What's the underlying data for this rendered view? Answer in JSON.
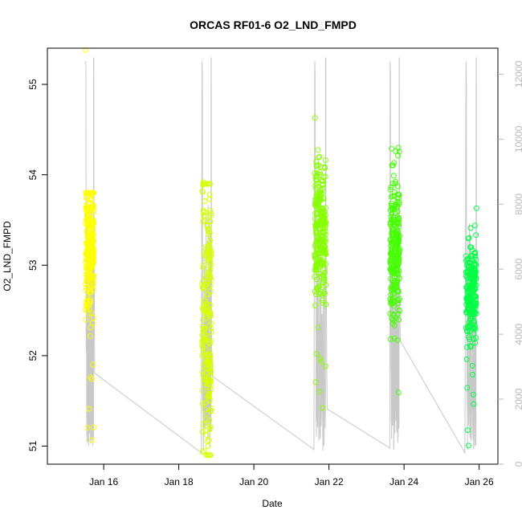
{
  "chart_data": {
    "type": "scatter",
    "title": "ORCAS RF01-6 O2_LND_FMPD",
    "xlabel": "Date",
    "ylabel": "O2_LND_FMPD",
    "x_ticks": [
      "Jan 16",
      "Jan 18",
      "Jan 20",
      "Jan 22",
      "Jan 24",
      "Jan 26"
    ],
    "x_tick_days": [
      16,
      18,
      20,
      22,
      24,
      26
    ],
    "xlim_days": [
      14.5,
      26.5
    ],
    "ylim": [
      50.8,
      55.4
    ],
    "y_ticks": [
      51,
      52,
      53,
      54,
      55
    ],
    "y2_label": "",
    "y2lim": [
      0,
      12800
    ],
    "y2_ticks": [
      0,
      2000,
      4000,
      6000,
      8000,
      10000,
      12000
    ],
    "grid": false,
    "colors": {
      "altitude_line": "#c8c8c8",
      "right_axis": "#b8b8b8",
      "flight_1": "#ffff00",
      "flight_2": "#d8ff00",
      "flight_3": "#88ff00",
      "flight_4": "#44ff00",
      "flight_5": "#00ff44"
    },
    "flights": [
      {
        "start_day": 15.52,
        "end_day": 15.74,
        "mean": 53.25,
        "spread": 0.35,
        "lo": 50.8,
        "hi": 53.8,
        "n": 260,
        "color_key": "flight_1"
      },
      {
        "start_day": 18.62,
        "end_day": 18.87,
        "mean": 52.3,
        "spread": 0.9,
        "lo": 50.9,
        "hi": 53.9,
        "n": 230,
        "color_key": "flight_2"
      },
      {
        "start_day": 21.62,
        "end_day": 21.92,
        "mean": 53.4,
        "spread": 0.35,
        "lo": 51.1,
        "hi": 54.6,
        "n": 260,
        "color_key": "flight_3"
      },
      {
        "start_day": 23.63,
        "end_day": 23.88,
        "mean": 53.2,
        "spread": 0.4,
        "lo": 51.4,
        "hi": 54.3,
        "n": 250,
        "color_key": "flight_4"
      },
      {
        "start_day": 25.65,
        "end_day": 25.93,
        "mean": 52.7,
        "spread": 0.3,
        "lo": 50.8,
        "hi": 53.6,
        "n": 220,
        "color_key": "flight_5"
      }
    ],
    "highlight_points": [
      {
        "day": 15.52,
        "y": 55.38,
        "color_key": "flight_1"
      },
      {
        "day": 18.65,
        "y": 53.92,
        "color_key": "flight_2"
      },
      {
        "day": 21.63,
        "y": 54.63,
        "color_key": "flight_3"
      },
      {
        "day": 23.85,
        "y": 54.3,
        "color_key": "flight_4"
      },
      {
        "day": 25.93,
        "y": 53.63,
        "color_key": "flight_5"
      }
    ],
    "altitude_transits": [
      {
        "from_day": 15.76,
        "from_alt": 2800,
        "to_day": 18.6,
        "to_alt": 350
      },
      {
        "from_day": 18.9,
        "from_alt": 2700,
        "to_day": 21.6,
        "to_alt": 450
      },
      {
        "from_day": 21.95,
        "from_alt": 1700,
        "to_day": 23.62,
        "to_alt": 500
      },
      {
        "from_day": 23.9,
        "from_alt": 3800,
        "to_day": 25.62,
        "to_alt": 350
      }
    ]
  }
}
